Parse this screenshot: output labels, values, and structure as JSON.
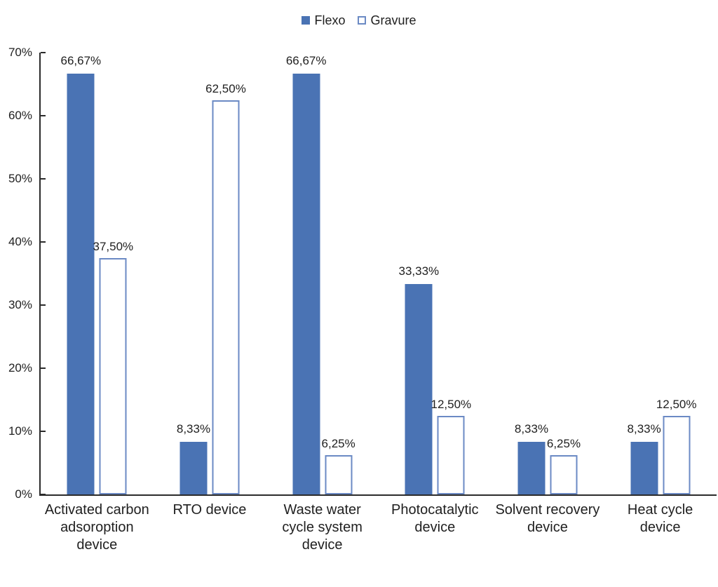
{
  "chart_data": {
    "type": "bar",
    "title": "",
    "xlabel": "",
    "ylabel": "",
    "legend_position": "top-center",
    "grid": false,
    "ylim": [
      0,
      70
    ],
    "yticks": [
      {
        "value": 0,
        "label": "0%"
      },
      {
        "value": 10,
        "label": "10%"
      },
      {
        "value": 20,
        "label": "20%"
      },
      {
        "value": 30,
        "label": "30%"
      },
      {
        "value": 40,
        "label": "40%"
      },
      {
        "value": 50,
        "label": "50%"
      },
      {
        "value": 60,
        "label": "60%"
      },
      {
        "value": 70,
        "label": "70%"
      }
    ],
    "categories": [
      "Activated carbon\nadsoroption\ndevice",
      "RTO device",
      "Waste water\ncycle system\ndevice",
      "Photocatalytic\ndevice",
      "Solvent recovery\ndevice",
      "Heat cycle\ndevice"
    ],
    "series": [
      {
        "name": "Flexo",
        "style": "filled",
        "values": [
          66.67,
          8.33,
          66.67,
          33.33,
          8.33,
          8.33
        ],
        "labels": [
          "66,67%",
          "8,33%",
          "66,67%",
          "33,33%",
          "8,33%",
          "8,33%"
        ]
      },
      {
        "name": "Gravure",
        "style": "outlined",
        "values": [
          37.5,
          62.5,
          6.25,
          12.5,
          6.25,
          12.5
        ],
        "labels": [
          "37,50%",
          "62,50%",
          "6,25%",
          "12,50%",
          "6,25%",
          "12,50%"
        ]
      }
    ],
    "colors": {
      "bar_fill": "#4a73b4",
      "bar_outline": "#6b8ac4",
      "axis": "#2b2b2b",
      "text": "#1f1f1f"
    }
  }
}
